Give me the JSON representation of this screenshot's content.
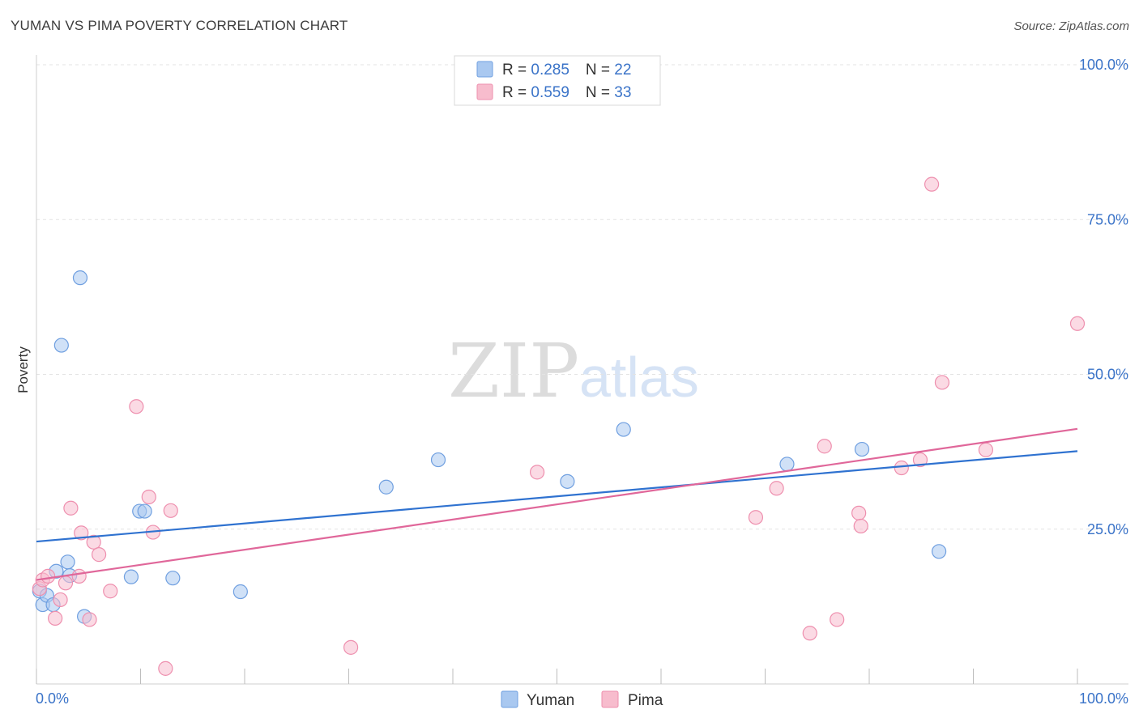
{
  "title": "YUMAN VS PIMA POVERTY CORRELATION CHART",
  "source": "Source: ZipAtlas.com",
  "watermark": {
    "zip": "ZIP",
    "atlas": "atlas"
  },
  "colors": {
    "yuman_fill": "#a9c8f0",
    "yuman_stroke": "#6f9fe0",
    "yuman_line": "#2f72d0",
    "pima_fill": "#f7bccd",
    "pima_stroke": "#ee8fae",
    "pima_line": "#e0679a",
    "axis_text": "#3a73c8",
    "grid": "#e3e3e3"
  },
  "legend": {
    "rows": [
      {
        "series": "Yuman",
        "r_label": "R = ",
        "r_value": "0.285",
        "n_label": "N = ",
        "n_value": "22"
      },
      {
        "series": "Pima",
        "r_label": "R = ",
        "r_value": "0.559",
        "n_label": "N = ",
        "n_value": "33"
      }
    ]
  },
  "chart_data": {
    "type": "scatter",
    "title": "YUMAN VS PIMA POVERTY CORRELATION CHART",
    "xlabel": "",
    "ylabel": "Poverty",
    "xlim": [
      0,
      100
    ],
    "ylim": [
      0,
      100
    ],
    "x_tick_labels": [
      "0.0%",
      "100.0%"
    ],
    "y_ticks": [
      25,
      50,
      75,
      100
    ],
    "y_tick_labels": [
      "25.0%",
      "50.0%",
      "75.0%",
      "100.0%"
    ],
    "grid": true,
    "legend_position": "bottom-center",
    "series": [
      {
        "name": "Yuman",
        "points": [
          [
            0.3,
            15.0
          ],
          [
            0.6,
            12.8
          ],
          [
            1.0,
            14.3
          ],
          [
            1.6,
            12.8
          ],
          [
            1.9,
            18.2
          ],
          [
            3.0,
            19.7
          ],
          [
            3.2,
            17.5
          ],
          [
            2.4,
            54.7
          ],
          [
            4.2,
            65.6
          ],
          [
            4.6,
            10.9
          ],
          [
            9.1,
            17.3
          ],
          [
            9.9,
            27.9
          ],
          [
            10.4,
            27.9
          ],
          [
            13.1,
            17.1
          ],
          [
            19.6,
            14.9
          ],
          [
            33.6,
            31.8
          ],
          [
            38.6,
            36.2
          ],
          [
            51.0,
            32.7
          ],
          [
            56.4,
            41.1
          ],
          [
            72.1,
            35.5
          ],
          [
            79.3,
            37.9
          ],
          [
            86.7,
            21.4
          ]
        ],
        "trend": {
          "x": [
            0,
            100
          ],
          "y": [
            23.0,
            37.6
          ]
        }
      },
      {
        "name": "Pima",
        "points": [
          [
            0.3,
            15.4
          ],
          [
            0.6,
            16.8
          ],
          [
            1.1,
            17.4
          ],
          [
            1.8,
            10.6
          ],
          [
            2.3,
            13.6
          ],
          [
            2.8,
            16.3
          ],
          [
            3.3,
            28.4
          ],
          [
            4.1,
            17.4
          ],
          [
            4.3,
            24.4
          ],
          [
            5.1,
            10.4
          ],
          [
            5.5,
            22.9
          ],
          [
            6.0,
            20.9
          ],
          [
            7.1,
            15.0
          ],
          [
            9.6,
            44.8
          ],
          [
            10.8,
            30.2
          ],
          [
            11.2,
            24.5
          ],
          [
            12.4,
            2.5
          ],
          [
            12.9,
            28.0
          ],
          [
            30.2,
            5.9
          ],
          [
            48.1,
            34.2
          ],
          [
            69.1,
            26.9
          ],
          [
            71.1,
            31.6
          ],
          [
            74.3,
            8.2
          ],
          [
            75.7,
            38.4
          ],
          [
            76.9,
            10.4
          ],
          [
            79.0,
            27.6
          ],
          [
            79.2,
            25.5
          ],
          [
            83.1,
            34.9
          ],
          [
            84.9,
            36.2
          ],
          [
            86.0,
            80.7
          ],
          [
            87.0,
            48.7
          ],
          [
            91.2,
            37.8
          ],
          [
            100.0,
            58.2
          ]
        ],
        "trend": {
          "x": [
            0,
            100
          ],
          "y": [
            16.8,
            41.2
          ]
        }
      }
    ]
  }
}
